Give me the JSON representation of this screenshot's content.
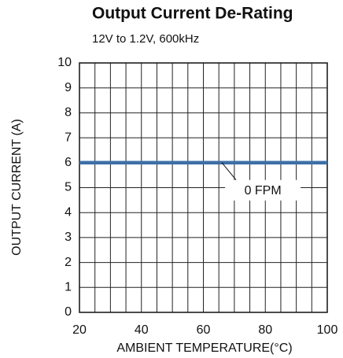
{
  "chart_data": {
    "type": "line",
    "title": "Output Current De-Rating",
    "subtitle": "12V to 1.2V, 600kHz",
    "x_label": "AMBIENT TEMPERATURE(°C)",
    "y_label": "OUTPUT CURRENT (A)",
    "x": [
      20,
      100
    ],
    "series": [
      {
        "name": "0 FPM",
        "color": "#3d6fa8",
        "values": [
          6,
          6
        ]
      }
    ],
    "xlim": [
      20,
      100
    ],
    "xticks": [
      20,
      40,
      60,
      80,
      100
    ],
    "xminorticks": [
      25,
      30,
      35,
      45,
      50,
      55,
      65,
      70,
      75,
      85,
      90,
      95
    ],
    "ylim": [
      0,
      10
    ],
    "yticks": [
      0,
      1,
      2,
      3,
      4,
      5,
      6,
      7,
      8,
      9,
      10
    ],
    "grid": true
  }
}
